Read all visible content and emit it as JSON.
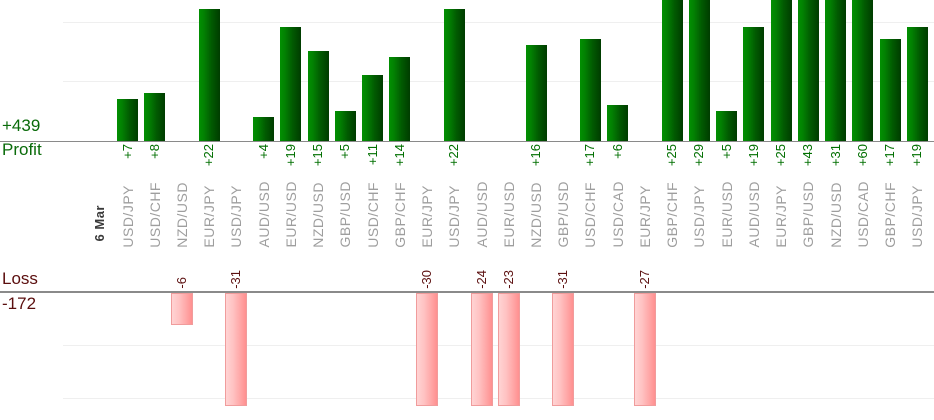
{
  "summary": {
    "profit_total": "+439",
    "profit_label": "Profit",
    "loss_label": "Loss",
    "loss_total": "-172"
  },
  "chart_data": {
    "type": "bar",
    "orientation": "vertical-columns",
    "title": "",
    "date": "6 Mar",
    "categories": [
      "USD/JPY",
      "USD/CHF",
      "NZD/USD",
      "EUR/JPY",
      "USD/JPY",
      "AUD/USD",
      "EUR/USD",
      "NZD/USD",
      "GBP/USD",
      "USD/CHF",
      "GBP/CHF",
      "EUR/JPY",
      "USD/JPY",
      "AUD/USD",
      "EUR/USD",
      "NZD/USD",
      "GBP/USD",
      "USD/CHF",
      "USD/CAD",
      "EUR/JPY",
      "GBP/CHF",
      "USD/JPY",
      "EUR/USD",
      "AUD/USD",
      "EUR/JPY",
      "GBP/USD",
      "NZD/USD",
      "USD/CAD",
      "GBP/CHF",
      "USD/JPY"
    ],
    "series": [
      {
        "name": "Profit",
        "values": [
          7,
          8,
          null,
          22,
          null,
          4,
          19,
          15,
          5,
          11,
          14,
          null,
          22,
          null,
          null,
          16,
          null,
          17,
          6,
          null,
          25,
          29,
          5,
          19,
          25,
          43,
          31,
          60,
          17,
          19
        ]
      },
      {
        "name": "Loss",
        "values": [
          null,
          null,
          -6,
          null,
          -31,
          null,
          null,
          null,
          null,
          null,
          null,
          -30,
          null,
          -24,
          -23,
          null,
          -31,
          null,
          null,
          -27,
          null,
          null,
          null,
          null,
          null,
          null,
          null,
          null,
          null,
          null
        ]
      }
    ],
    "totals": {
      "profit": 439,
      "loss": -172
    },
    "value_label_format": {
      "profit_prefix": "+",
      "loss_prefix": "-"
    },
    "profit_axis": {
      "zero_at_baseline": true,
      "gridline_step": 10,
      "visible_max": 23.5,
      "bars_clipped_above": 23.5
    },
    "loss_axis": {
      "zero_at_baseline": true,
      "gridline_step": 10,
      "visible_min": -21.3,
      "bars_clipped_below": -21.3
    },
    "grid": true,
    "legend": "none",
    "label_rotation_deg": 90,
    "colors": {
      "profit_bar_light": "#029002",
      "profit_bar_dark": "#003c00",
      "loss_bar_light": "#ffd3d3",
      "loss_bar_dark": "#ff9090",
      "loss_bar_border": "#f09c9c",
      "profit_text": "#006f00",
      "loss_text": "#5c1010",
      "summary_profit_text": "#0a6b0a",
      "summary_loss_text": "#5b0e0e",
      "pair_label_text": "#9e9e9e",
      "date_text": "#3a3a3a",
      "axis_line": "#8a8a8a",
      "gridline": "#efefef"
    }
  }
}
